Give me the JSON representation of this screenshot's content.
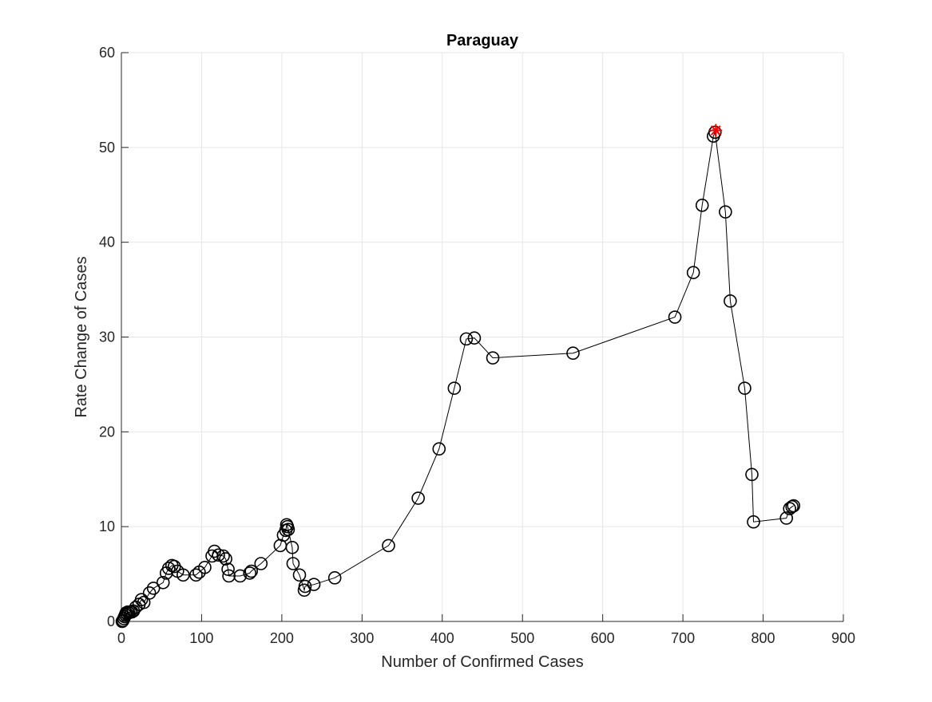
{
  "chart_data": {
    "type": "line",
    "title": "Paraguay",
    "xlabel": "Number of Confirmed Cases",
    "ylabel": "Rate Change of Cases",
    "xlim": [
      0,
      900
    ],
    "ylim": [
      0,
      60
    ],
    "xticks": [
      0,
      100,
      200,
      300,
      400,
      500,
      600,
      700,
      800,
      900
    ],
    "yticks": [
      0,
      10,
      20,
      30,
      40,
      50,
      60
    ],
    "xtick_labels": [
      "0",
      "100",
      "200",
      "300",
      "400",
      "500",
      "600",
      "700",
      "800",
      "900"
    ],
    "ytick_labels": [
      "0",
      "10",
      "20",
      "30",
      "40",
      "50",
      "60"
    ],
    "grid": true,
    "line_color": "#000000",
    "marker": "circle",
    "highlight_color": "#ff0000",
    "highlight_marker": "star",
    "highlight_point": {
      "x": 741,
      "y": 51.8
    },
    "series": [
      {
        "x": [
          1,
          2,
          3,
          4,
          5,
          6,
          7,
          8,
          9,
          11,
          13,
          15,
          18,
          22,
          25,
          28,
          35,
          40,
          52,
          56,
          59,
          63,
          66,
          70,
          77,
          93,
          97,
          104,
          113,
          116,
          121,
          127,
          130,
          133,
          134,
          148,
          160,
          162,
          174,
          198,
          202,
          205,
          206,
          207,
          208,
          213,
          214,
          222,
          228,
          229,
          240,
          266,
          333,
          370,
          396,
          415,
          430,
          440,
          463,
          563,
          690,
          713,
          724,
          738,
          740,
          753,
          759,
          777,
          786,
          788,
          829,
          833,
          836,
          838
        ],
        "y": [
          0,
          0.1,
          0.3,
          0.5,
          0.7,
          0.9,
          0.8,
          1.0,
          0.9,
          1.0,
          1.0,
          1.1,
          1.5,
          1.8,
          2.3,
          2.0,
          3.0,
          3.5,
          4.1,
          5.1,
          5.6,
          5.9,
          5.8,
          5.3,
          4.9,
          4.9,
          5.2,
          5.7,
          6.9,
          7.4,
          7.0,
          6.9,
          6.6,
          5.5,
          4.8,
          4.8,
          5.1,
          5.3,
          6.1,
          8.0,
          9.1,
          9.6,
          10.2,
          10.0,
          9.7,
          7.8,
          6.1,
          4.9,
          3.3,
          3.7,
          3.9,
          4.6,
          8.0,
          13.0,
          18.2,
          24.6,
          29.8,
          29.9,
          27.8,
          28.3,
          32.1,
          36.8,
          43.9,
          51.2,
          51.6,
          43.2,
          33.8,
          24.6,
          15.5,
          10.5,
          10.9,
          11.9,
          12.1,
          12.2
        ]
      }
    ]
  }
}
